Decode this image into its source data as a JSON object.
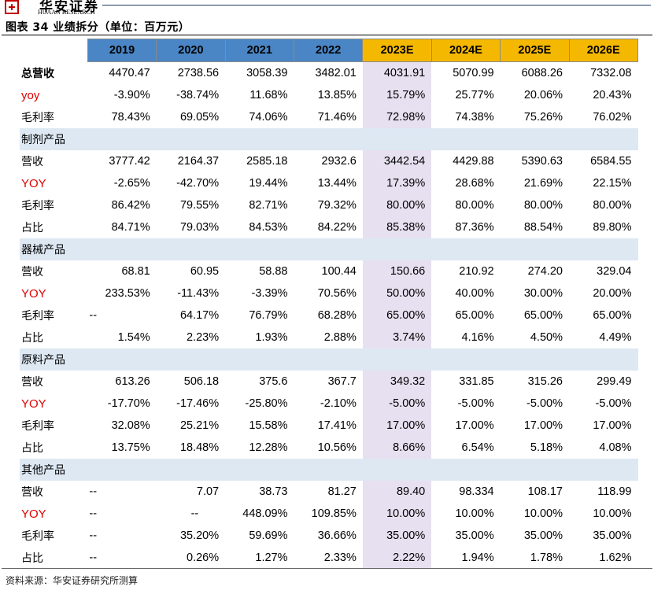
{
  "brand": {
    "name": "华安证券",
    "subtitle": "HUAAN RESEARCH"
  },
  "caption": "图表 34 业绩拆分（单位：百万元）",
  "header": {
    "years": [
      "2019",
      "2020",
      "2021",
      "2022",
      "2023E",
      "2024E",
      "2025E",
      "2026E"
    ],
    "estimate_from_index": 4,
    "colors": {
      "historical": "#4a86c5",
      "estimate": "#f5b800",
      "highlight": "#e6e0f0",
      "section": "#dde8f3",
      "yoy_label": "#e00000"
    }
  },
  "rows": [
    {
      "type": "data",
      "label": "总营收",
      "style": "bold",
      "values": [
        "4470.47",
        "2738.56",
        "3058.39",
        "3482.01",
        "4031.91",
        "5070.99",
        "6088.26",
        "7332.08"
      ]
    },
    {
      "type": "data",
      "label": "yoy",
      "style": "red",
      "values": [
        "-3.90%",
        "-38.74%",
        "11.68%",
        "13.85%",
        "15.79%",
        "25.77%",
        "20.06%",
        "20.43%"
      ]
    },
    {
      "type": "data",
      "label": "毛利率",
      "style": "normal",
      "values": [
        "78.43%",
        "69.05%",
        "74.06%",
        "71.46%",
        "72.98%",
        "74.38%",
        "75.26%",
        "76.02%"
      ]
    },
    {
      "type": "section",
      "label": "制剂产品"
    },
    {
      "type": "data",
      "label": "营收",
      "style": "normal",
      "values": [
        "3777.42",
        "2164.37",
        "2585.18",
        "2932.6",
        "3442.54",
        "4429.88",
        "5390.63",
        "6584.55"
      ]
    },
    {
      "type": "data",
      "label": "YOY",
      "style": "red",
      "values": [
        "-2.65%",
        "-42.70%",
        "19.44%",
        "13.44%",
        "17.39%",
        "28.68%",
        "21.69%",
        "22.15%"
      ]
    },
    {
      "type": "data",
      "label": "毛利率",
      "style": "normal",
      "values": [
        "86.42%",
        "79.55%",
        "82.71%",
        "79.32%",
        "80.00%",
        "80.00%",
        "80.00%",
        "80.00%"
      ]
    },
    {
      "type": "data",
      "label": "占比",
      "style": "normal",
      "values": [
        "84.71%",
        "79.03%",
        "84.53%",
        "84.22%",
        "85.38%",
        "87.36%",
        "88.54%",
        "89.80%"
      ]
    },
    {
      "type": "section",
      "label": "器械产品"
    },
    {
      "type": "data",
      "label": "营收",
      "style": "normal",
      "values": [
        "68.81",
        "60.95",
        "58.88",
        "100.44",
        "150.66",
        "210.92",
        "274.20",
        "329.04"
      ]
    },
    {
      "type": "data",
      "label": "YOY",
      "style": "red",
      "values": [
        "233.53%",
        "-11.43%",
        "-3.39%",
        "70.56%",
        "50.00%",
        "40.00%",
        "30.00%",
        "20.00%"
      ]
    },
    {
      "type": "data",
      "label": "毛利率",
      "style": "normal",
      "values": [
        "--",
        "64.17%",
        "76.79%",
        "68.28%",
        "65.00%",
        "65.00%",
        "65.00%",
        "65.00%"
      ]
    },
    {
      "type": "data",
      "label": "占比",
      "style": "normal",
      "values": [
        "1.54%",
        "2.23%",
        "1.93%",
        "2.88%",
        "3.74%",
        "4.16%",
        "4.50%",
        "4.49%"
      ]
    },
    {
      "type": "section",
      "label": "原料产品"
    },
    {
      "type": "data",
      "label": "营收",
      "style": "normal",
      "values": [
        "613.26",
        "506.18",
        "375.6",
        "367.7",
        "349.32",
        "331.85",
        "315.26",
        "299.49"
      ]
    },
    {
      "type": "data",
      "label": "YOY",
      "style": "red",
      "values": [
        "-17.70%",
        "-17.46%",
        "-25.80%",
        "-2.10%",
        "-5.00%",
        "-5.00%",
        "-5.00%",
        "-5.00%"
      ]
    },
    {
      "type": "data",
      "label": "毛利率",
      "style": "normal",
      "values": [
        "32.08%",
        "25.21%",
        "15.58%",
        "17.41%",
        "17.00%",
        "17.00%",
        "17.00%",
        "17.00%"
      ]
    },
    {
      "type": "data",
      "label": "占比",
      "style": "normal",
      "values": [
        "13.75%",
        "18.48%",
        "12.28%",
        "10.56%",
        "8.66%",
        "6.54%",
        "5.18%",
        "4.08%"
      ]
    },
    {
      "type": "section",
      "label": "其他产品"
    },
    {
      "type": "data",
      "label": "营收",
      "style": "normal",
      "values": [
        "--",
        "7.07",
        "38.73",
        "81.27",
        "89.40",
        "98.334",
        "108.17",
        "118.99"
      ]
    },
    {
      "type": "data",
      "label": "YOY",
      "style": "red",
      "values": [
        "--",
        "--",
        "448.09%",
        "109.85%",
        "10.00%",
        "10.00%",
        "10.00%",
        "10.00%"
      ]
    },
    {
      "type": "data",
      "label": "毛利率",
      "style": "normal",
      "values": [
        "--",
        "35.20%",
        "59.69%",
        "36.66%",
        "35.00%",
        "35.00%",
        "35.00%",
        "35.00%"
      ]
    },
    {
      "type": "data",
      "label": "占比",
      "style": "normal",
      "values": [
        "--",
        "0.26%",
        "1.27%",
        "2.33%",
        "2.22%",
        "1.94%",
        "1.78%",
        "1.62%"
      ]
    }
  ],
  "source": "资料来源：华安证券研究所测算"
}
